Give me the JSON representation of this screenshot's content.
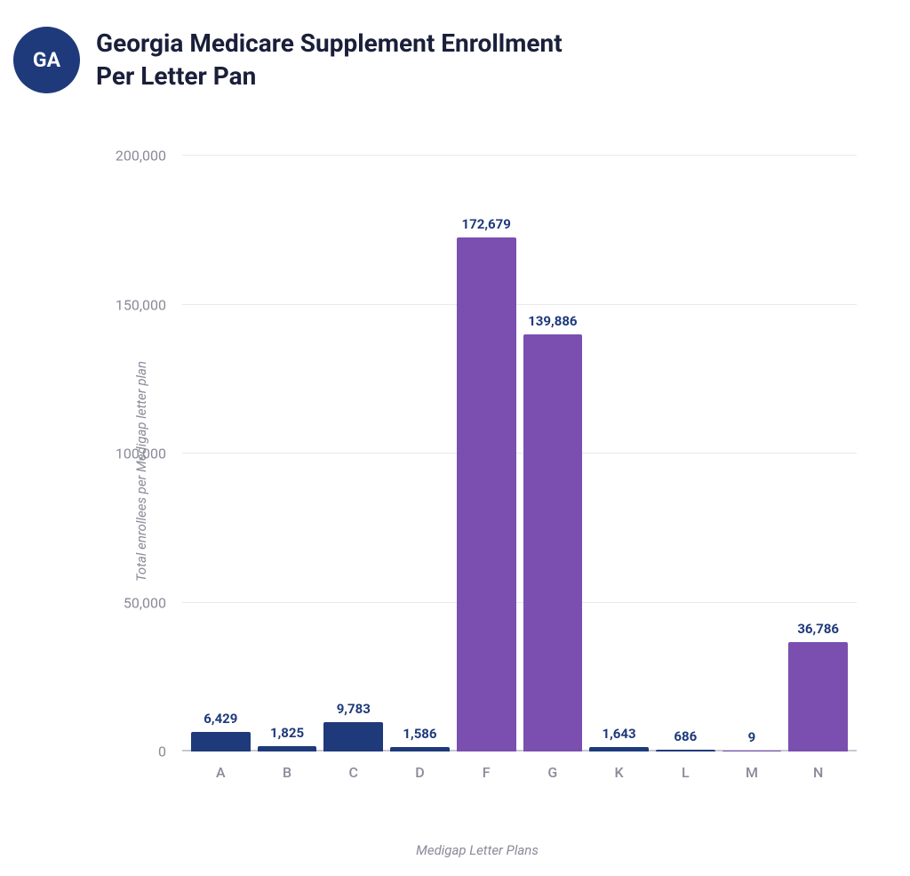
{
  "header": {
    "badge_text": "GA",
    "badge_bg": "#1e3a7b",
    "title_line1": "Georgia Medicare Supplement Enrollment",
    "title_line2": "Per Letter Pan",
    "title_color": "#1a1f3a"
  },
  "chart": {
    "type": "bar",
    "y_axis_label": "Total enrollees per Medigap letter plan",
    "x_axis_label": "Medigap Letter Plans",
    "ylim_max": 200000,
    "y_ticks": [
      0,
      50000,
      100000,
      150000,
      200000
    ],
    "y_tick_labels": [
      "0",
      "50,000",
      "100,000",
      "150,000",
      "200,000"
    ],
    "background_color": "#ffffff",
    "grid_color": "#e8e8ee",
    "axis_label_color": "#8a8a99",
    "value_label_color": "#1e3a7b",
    "categories": [
      "A",
      "B",
      "C",
      "D",
      "F",
      "G",
      "K",
      "L",
      "M",
      "N"
    ],
    "values": [
      6429,
      1825,
      9783,
      1586,
      172679,
      139886,
      1643,
      686,
      9,
      36786
    ],
    "value_labels": [
      "6,429",
      "1,825",
      "9,783",
      "1,586",
      "172,679",
      "139,886",
      "1,643",
      "686",
      "9",
      "36,786"
    ],
    "bar_colors": [
      "#1e3a7b",
      "#1e3a7b",
      "#1e3a7b",
      "#1e3a7b",
      "#7a4fb0",
      "#7a4fb0",
      "#1e3a7b",
      "#1e3a7b",
      "#7a4fb0",
      "#7a4fb0"
    ]
  }
}
